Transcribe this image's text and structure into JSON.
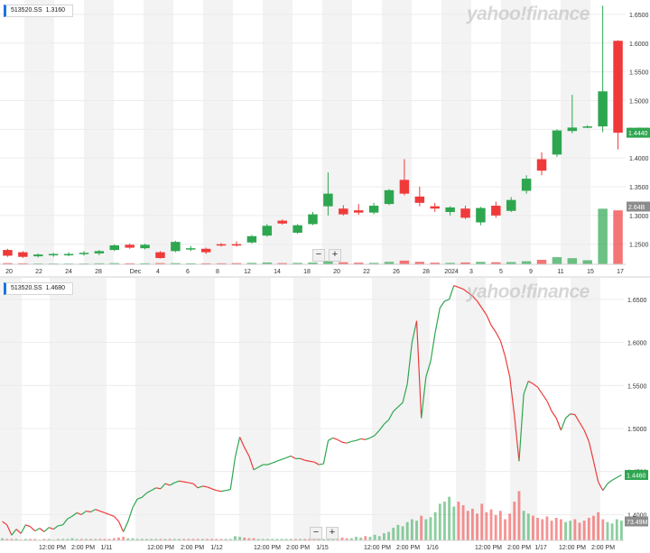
{
  "top_panel": {
    "ticker": "513520.SS",
    "value": "1.3160",
    "watermark": "yahoo!finance",
    "zoom_out": "−",
    "zoom_in": "+",
    "price_badge": "1.4440",
    "volume_badge": "2.64B"
  },
  "bottom_panel": {
    "ticker": "513520.SS",
    "value": "1.4680",
    "watermark": "yahoo!finance",
    "zoom_out": "−",
    "zoom_in": "+",
    "price_badge": "1.4460",
    "volume_badge": "73.49M"
  },
  "colors": {
    "up": "#2ea650",
    "down": "#f03a3a",
    "band": "#f3f3f3",
    "price_badge_bg": "#2ea650",
    "volume_badge_bg": "#8c8c8c"
  },
  "chart_data": [
    {
      "type": "candlestick",
      "interval": "daily",
      "x_tick_labels": [
        "20",
        "22",
        "24",
        "28",
        "Dec",
        "4",
        "6",
        "8",
        "12",
        "14",
        "18",
        "20",
        "22",
        "26",
        "28",
        "2024",
        "3",
        "5",
        "9",
        "11",
        "15",
        "17"
      ],
      "y_tick_labels": [
        "1.6500",
        "1.6000",
        "1.5500",
        "1.5000",
        "1.4500",
        "1.4000",
        "1.3500",
        "1.3000",
        "1.2500"
      ],
      "ylim": [
        1.215,
        1.675
      ],
      "y_ticks": [
        1.65,
        1.6,
        1.55,
        1.5,
        1.45,
        1.4,
        1.35,
        1.3,
        1.25
      ],
      "candles": [
        {
          "o": 1.24,
          "h": 1.242,
          "l": 1.228,
          "c": 1.23
        },
        {
          "o": 1.236,
          "h": 1.238,
          "l": 1.226,
          "c": 1.228
        },
        {
          "o": 1.229,
          "h": 1.234,
          "l": 1.227,
          "c": 1.232
        },
        {
          "o": 1.231,
          "h": 1.235,
          "l": 1.228,
          "c": 1.233
        },
        {
          "o": 1.232,
          "h": 1.236,
          "l": 1.229,
          "c": 1.233
        },
        {
          "o": 1.233,
          "h": 1.238,
          "l": 1.23,
          "c": 1.235
        },
        {
          "o": 1.234,
          "h": 1.24,
          "l": 1.231,
          "c": 1.238
        },
        {
          "o": 1.24,
          "h": 1.25,
          "l": 1.238,
          "c": 1.248
        },
        {
          "o": 1.249,
          "h": 1.251,
          "l": 1.242,
          "c": 1.244
        },
        {
          "o": 1.243,
          "h": 1.251,
          "l": 1.241,
          "c": 1.249
        },
        {
          "o": 1.236,
          "h": 1.238,
          "l": 1.225,
          "c": 1.226
        },
        {
          "o": 1.238,
          "h": 1.256,
          "l": 1.236,
          "c": 1.254
        },
        {
          "o": 1.242,
          "h": 1.247,
          "l": 1.238,
          "c": 1.243
        },
        {
          "o": 1.242,
          "h": 1.244,
          "l": 1.233,
          "c": 1.236
        },
        {
          "o": 1.25,
          "h": 1.252,
          "l": 1.246,
          "c": 1.248
        },
        {
          "o": 1.25,
          "h": 1.255,
          "l": 1.246,
          "c": 1.248
        },
        {
          "o": 1.253,
          "h": 1.266,
          "l": 1.251,
          "c": 1.264
        },
        {
          "o": 1.265,
          "h": 1.285,
          "l": 1.263,
          "c": 1.282
        },
        {
          "o": 1.291,
          "h": 1.293,
          "l": 1.284,
          "c": 1.286
        },
        {
          "o": 1.27,
          "h": 1.285,
          "l": 1.268,
          "c": 1.283
        },
        {
          "o": 1.285,
          "h": 1.306,
          "l": 1.283,
          "c": 1.302
        },
        {
          "o": 1.316,
          "h": 1.375,
          "l": 1.3,
          "c": 1.338
        },
        {
          "o": 1.312,
          "h": 1.318,
          "l": 1.3,
          "c": 1.302
        },
        {
          "o": 1.309,
          "h": 1.32,
          "l": 1.301,
          "c": 1.305
        },
        {
          "o": 1.305,
          "h": 1.322,
          "l": 1.302,
          "c": 1.317
        },
        {
          "o": 1.32,
          "h": 1.346,
          "l": 1.318,
          "c": 1.344
        },
        {
          "o": 1.362,
          "h": 1.398,
          "l": 1.335,
          "c": 1.338
        },
        {
          "o": 1.333,
          "h": 1.35,
          "l": 1.316,
          "c": 1.322
        },
        {
          "o": 1.316,
          "h": 1.322,
          "l": 1.306,
          "c": 1.312
        },
        {
          "o": 1.306,
          "h": 1.316,
          "l": 1.3,
          "c": 1.314
        },
        {
          "o": 1.312,
          "h": 1.317,
          "l": 1.294,
          "c": 1.296
        },
        {
          "o": 1.288,
          "h": 1.315,
          "l": 1.283,
          "c": 1.313
        },
        {
          "o": 1.317,
          "h": 1.324,
          "l": 1.296,
          "c": 1.3
        },
        {
          "o": 1.308,
          "h": 1.332,
          "l": 1.306,
          "c": 1.327
        },
        {
          "o": 1.343,
          "h": 1.37,
          "l": 1.338,
          "c": 1.364
        },
        {
          "o": 1.398,
          "h": 1.41,
          "l": 1.37,
          "c": 1.378
        },
        {
          "o": 1.406,
          "h": 1.45,
          "l": 1.402,
          "c": 1.448
        },
        {
          "o": 1.447,
          "h": 1.51,
          "l": 1.443,
          "c": 1.453
        },
        {
          "o": 1.455,
          "h": 1.457,
          "l": 1.452,
          "c": 1.455
        },
        {
          "o": 1.455,
          "h": 1.665,
          "l": 1.445,
          "c": 1.516
        },
        {
          "o": 1.604,
          "h": 1.605,
          "l": 1.415,
          "c": 1.444
        }
      ],
      "volume_scale_max": 3.0,
      "volumes": [
        0.06,
        0.05,
        0.04,
        0.04,
        0.04,
        0.04,
        0.05,
        0.06,
        0.05,
        0.05,
        0.06,
        0.06,
        0.05,
        0.05,
        0.05,
        0.06,
        0.07,
        0.09,
        0.06,
        0.07,
        0.09,
        0.16,
        0.1,
        0.08,
        0.07,
        0.12,
        0.18,
        0.12,
        0.08,
        0.07,
        0.09,
        0.12,
        0.1,
        0.11,
        0.15,
        0.22,
        0.35,
        0.3,
        0.2,
        2.72,
        2.64
      ]
    },
    {
      "type": "line",
      "interval": "intraday",
      "x_tick_labels": [
        "12:00 PM",
        "2:00 PM",
        "1/11",
        "12:00 PM",
        "2:00 PM",
        "1/12",
        "12:00 PM",
        "2:00 PM",
        "1/15",
        "12:00 PM",
        "2:00 PM",
        "1/16",
        "12:00 PM",
        "2:00 PM",
        "1/17",
        "12:00 PM",
        "2:00 PM"
      ],
      "y_tick_labels": [
        "1.6500",
        "1.6000",
        "1.5500",
        "1.5000",
        "1.4500",
        "1.4000"
      ],
      "ylim": [
        1.37,
        1.675
      ],
      "y_ticks": [
        1.65,
        1.6,
        1.55,
        1.5,
        1.45,
        1.4
      ],
      "series": [
        {
          "name": "",
          "values": [
            1.392,
            1.388,
            1.376,
            1.383,
            1.378,
            1.388,
            1.386,
            1.381,
            1.384,
            1.38,
            1.385,
            1.383,
            1.387,
            1.388,
            1.395,
            1.398,
            1.402,
            1.4,
            1.404,
            1.403,
            1.406,
            1.404,
            1.402,
            1.4,
            1.398,
            1.392,
            1.38,
            1.392,
            1.408,
            1.418,
            1.42,
            1.425,
            1.428,
            1.431,
            1.43,
            1.436,
            1.434,
            1.437,
            1.439,
            1.438,
            1.437,
            1.436,
            1.431,
            1.433,
            1.432,
            1.43,
            1.428,
            1.427,
            1.428,
            1.429,
            1.466,
            1.49,
            1.478,
            1.468,
            1.452,
            1.455,
            1.458,
            1.458,
            1.46,
            1.462,
            1.464,
            1.466,
            1.468,
            1.465,
            1.465,
            1.463,
            1.462,
            1.461,
            1.458,
            1.459,
            1.486,
            1.489,
            1.487,
            1.484,
            1.483,
            1.485,
            1.486,
            1.488,
            1.487,
            1.489,
            1.492,
            1.498,
            1.505,
            1.51,
            1.52,
            1.525,
            1.53,
            1.552,
            1.6,
            1.625,
            1.512,
            1.56,
            1.578,
            1.612,
            1.64,
            1.648,
            1.65,
            1.666,
            1.664,
            1.662,
            1.658,
            1.654,
            1.648,
            1.64,
            1.632,
            1.62,
            1.612,
            1.602,
            1.584,
            1.56,
            1.515,
            1.462,
            1.54,
            1.555,
            1.552,
            1.548,
            1.54,
            1.532,
            1.52,
            1.512,
            1.498,
            1.512,
            1.517,
            1.516,
            1.507,
            1.498,
            1.485,
            1.462,
            1.438,
            1.428,
            1.436,
            1.44,
            1.443,
            1.446
          ]
        }
      ],
      "volume_scale_max": 1.0,
      "volumes": [
        0.03,
        0.02,
        0.02,
        0.02,
        0.01,
        0.02,
        0.02,
        0.02,
        0.01,
        0.02,
        0.02,
        0.01,
        0.02,
        0.02,
        0.02,
        0.03,
        0.02,
        0.02,
        0.02,
        0.02,
        0.02,
        0.02,
        0.02,
        0.02,
        0.03,
        0.04,
        0.05,
        0.03,
        0.03,
        0.02,
        0.02,
        0.02,
        0.02,
        0.02,
        0.02,
        0.02,
        0.02,
        0.02,
        0.02,
        0.02,
        0.02,
        0.02,
        0.02,
        0.02,
        0.02,
        0.02,
        0.02,
        0.02,
        0.02,
        0.02,
        0.06,
        0.05,
        0.04,
        0.03,
        0.03,
        0.02,
        0.02,
        0.02,
        0.02,
        0.02,
        0.02,
        0.02,
        0.02,
        0.02,
        0.02,
        0.02,
        0.02,
        0.02,
        0.02,
        0.02,
        0.05,
        0.04,
        0.04,
        0.04,
        0.03,
        0.03,
        0.05,
        0.04,
        0.06,
        0.05,
        0.08,
        0.06,
        0.1,
        0.12,
        0.18,
        0.22,
        0.2,
        0.26,
        0.3,
        0.28,
        0.35,
        0.3,
        0.33,
        0.4,
        0.52,
        0.55,
        0.62,
        0.48,
        0.55,
        0.5,
        0.42,
        0.45,
        0.38,
        0.52,
        0.4,
        0.44,
        0.36,
        0.42,
        0.3,
        0.38,
        0.55,
        0.7,
        0.42,
        0.38,
        0.35,
        0.32,
        0.3,
        0.34,
        0.28,
        0.32,
        0.3,
        0.26,
        0.28,
        0.3,
        0.25,
        0.28,
        0.32,
        0.35,
        0.4,
        0.3,
        0.26,
        0.24,
        0.3,
        0.28
      ]
    }
  ]
}
